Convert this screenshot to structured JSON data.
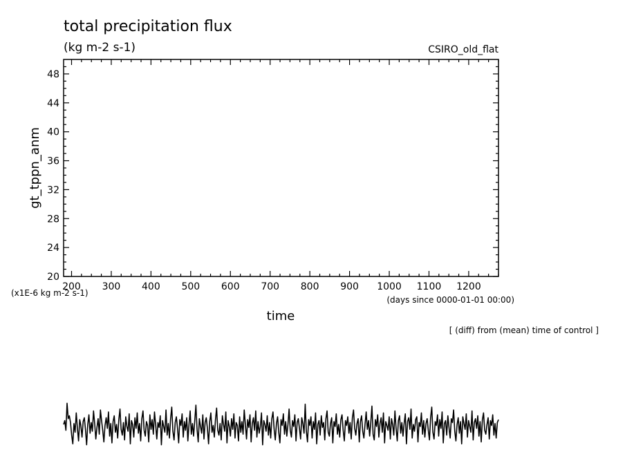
{
  "chart_data": {
    "type": "line",
    "title": "total precipitation flux",
    "subtitle": "(kg m-2 s-1)",
    "model_name": "CSIRO_old_flat",
    "ylabel": "gt_tppn_anm",
    "y_scale_note": "(x1E-6 kg m-2 s-1)",
    "xlabel": "time",
    "x_units": "(days since 0000-01-01 00:00)",
    "footnote": "[ (diff) from (mean) time of control ]",
    "xlim": [
      180,
      1275
    ],
    "ylim": [
      20,
      50
    ],
    "x_ticks": [
      200,
      300,
      400,
      500,
      600,
      700,
      800,
      900,
      1000,
      1100,
      1200
    ],
    "y_ticks": [
      20,
      24,
      28,
      32,
      36,
      40,
      44,
      48
    ],
    "grid": false,
    "series": [
      {
        "values": [
          0.2,
          0.6,
          -0.4,
          2.4,
          0.8,
          1.1,
          0.4,
          -0.9,
          -1.8,
          0.3,
          -0.6,
          1.4,
          -0.2,
          -1.5,
          0.7,
          0.1,
          -1.1,
          0.5,
          0.9,
          -0.3,
          -1.9,
          0.2,
          1.2,
          -0.7,
          0.4,
          -0.5,
          1.6,
          0.3,
          -1.3,
          -0.1,
          0.8,
          -0.8,
          1.7,
          0.6,
          -0.4,
          -1.6,
          0.1,
          0.9,
          -0.2,
          1.5,
          -1.0,
          0.3,
          -1.7,
          0.5,
          1.1,
          -0.6,
          0.2,
          -1.2,
          0.7,
          1.8,
          -0.3,
          -0.9,
          0.4,
          -1.4,
          1.0,
          0.0,
          -0.5,
          1.3,
          -1.8,
          0.6,
          0.2,
          -1.1,
          0.9,
          -0.2,
          1.4,
          -0.7,
          0.3,
          -1.5,
          0.8,
          1.6,
          -0.4,
          -1.0,
          0.5,
          0.1,
          -1.6,
          1.2,
          -0.3,
          0.7,
          -0.8,
          1.5,
          0.2,
          -1.3,
          0.4,
          -0.1,
          1.1,
          -1.9,
          0.6,
          0.0,
          -0.6,
          1.7,
          -0.9,
          0.3,
          -1.2,
          0.8,
          2.0,
          -0.5,
          -1.4,
          0.4,
          1.0,
          -0.2,
          -1.7,
          0.7,
          0.1,
          1.3,
          -1.1,
          0.5,
          -0.4,
          0.9,
          -1.5,
          0.2,
          1.6,
          -0.8,
          0.3,
          -1.0,
          0.6,
          2.2,
          -0.3,
          -1.6,
          0.8,
          0.0,
          -0.7,
          1.2,
          -1.3,
          0.4,
          0.9,
          -0.2,
          -1.8,
          0.5,
          1.4,
          -0.6,
          0.1,
          -1.1,
          0.7,
          1.9,
          -0.4,
          -0.9,
          0.3,
          -1.4,
          1.1,
          0.2,
          -0.5,
          1.5,
          -1.7,
          0.6,
          0.0,
          -1.0,
          0.8,
          -0.3,
          1.3,
          -1.2,
          0.4,
          0.1,
          -1.5,
          1.0,
          -0.6,
          0.5,
          -0.8,
          1.7,
          0.2,
          -1.3,
          0.7,
          -0.1,
          1.2,
          -1.6,
          0.3,
          0.9,
          -0.4,
          1.6,
          -1.1,
          0.5,
          -0.7,
          0.0,
          1.4,
          -1.9,
          0.6,
          0.2,
          -0.5,
          1.1,
          -0.9,
          0.4,
          -1.2,
          0.8,
          1.5,
          -0.3,
          -1.4,
          0.3,
          1.0,
          -0.6,
          -1.7,
          0.7,
          0.1,
          1.3,
          -0.8,
          0.5,
          -1.0,
          0.2,
          1.8,
          -0.4,
          -1.1,
          0.6,
          0.0,
          1.2,
          -1.5,
          0.4,
          0.8,
          -0.2,
          -1.3,
          0.9,
          0.3,
          -0.7,
          2.3,
          -0.5,
          -1.6,
          0.7,
          0.1,
          1.0,
          -1.2,
          0.5,
          -0.3,
          1.4,
          -1.8,
          0.2,
          0.6,
          -0.9,
          1.1,
          -0.1,
          0.4,
          -1.4,
          0.8,
          1.6,
          -0.6,
          -1.0,
          0.3,
          0.9,
          -1.7,
          0.5,
          0.0,
          1.3,
          -0.8,
          0.2,
          -1.1,
          0.7,
          1.2,
          -0.4,
          -1.5,
          0.6,
          0.1,
          1.0,
          -0.7,
          0.4,
          -1.3,
          0.9,
          1.7,
          -0.2,
          -0.9,
          0.3,
          0.8,
          -1.6,
          0.5,
          1.1,
          -0.5,
          -1.2,
          0.2,
          1.5,
          -0.3,
          0.6,
          -1.0,
          0.4,
          2.1,
          -0.8,
          -1.4,
          0.7,
          0.0,
          1.2,
          -1.1,
          0.3,
          0.9,
          -0.6,
          1.4,
          -1.7,
          0.5,
          0.1,
          -0.4,
          1.0,
          -1.3,
          0.8,
          0.2,
          -0.9,
          1.6,
          -0.2,
          -1.5,
          0.6,
          1.1,
          -0.7,
          0.4,
          -1.0,
          0.3,
          1.3,
          -1.8,
          0.5,
          0.9,
          -0.3,
          1.8,
          -1.2,
          0.2,
          -0.5,
          0.7,
          1.0,
          -1.6,
          0.4,
          0.0,
          1.4,
          -0.8,
          0.6,
          -1.1,
          0.3,
          0.8,
          -0.4,
          -1.4,
          0.9,
          2.0,
          -0.6,
          -1.3,
          0.5,
          0.1,
          1.2,
          -1.0,
          0.7,
          -0.2,
          1.5,
          -1.7,
          0.3,
          0.6,
          -0.9,
          1.1,
          -0.1,
          -1.2,
          0.8,
          0.4,
          1.7,
          -0.5,
          -1.5,
          0.2,
          0.9,
          -0.7,
          0.5,
          -1.8,
          1.0,
          0.3,
          -0.3,
          1.3,
          -1.1,
          0.6,
          0.0,
          -0.6,
          1.6,
          -1.4,
          0.4,
          0.8,
          -0.2,
          1.1,
          -1.0,
          0.5,
          -1.6,
          0.7,
          1.4,
          -0.4,
          -0.8,
          0.2,
          0.9,
          -1.3,
          0.6,
          0.1,
          1.2,
          -0.9,
          0.3,
          -1.2,
          0.4,
          0.7
        ]
      }
    ]
  }
}
